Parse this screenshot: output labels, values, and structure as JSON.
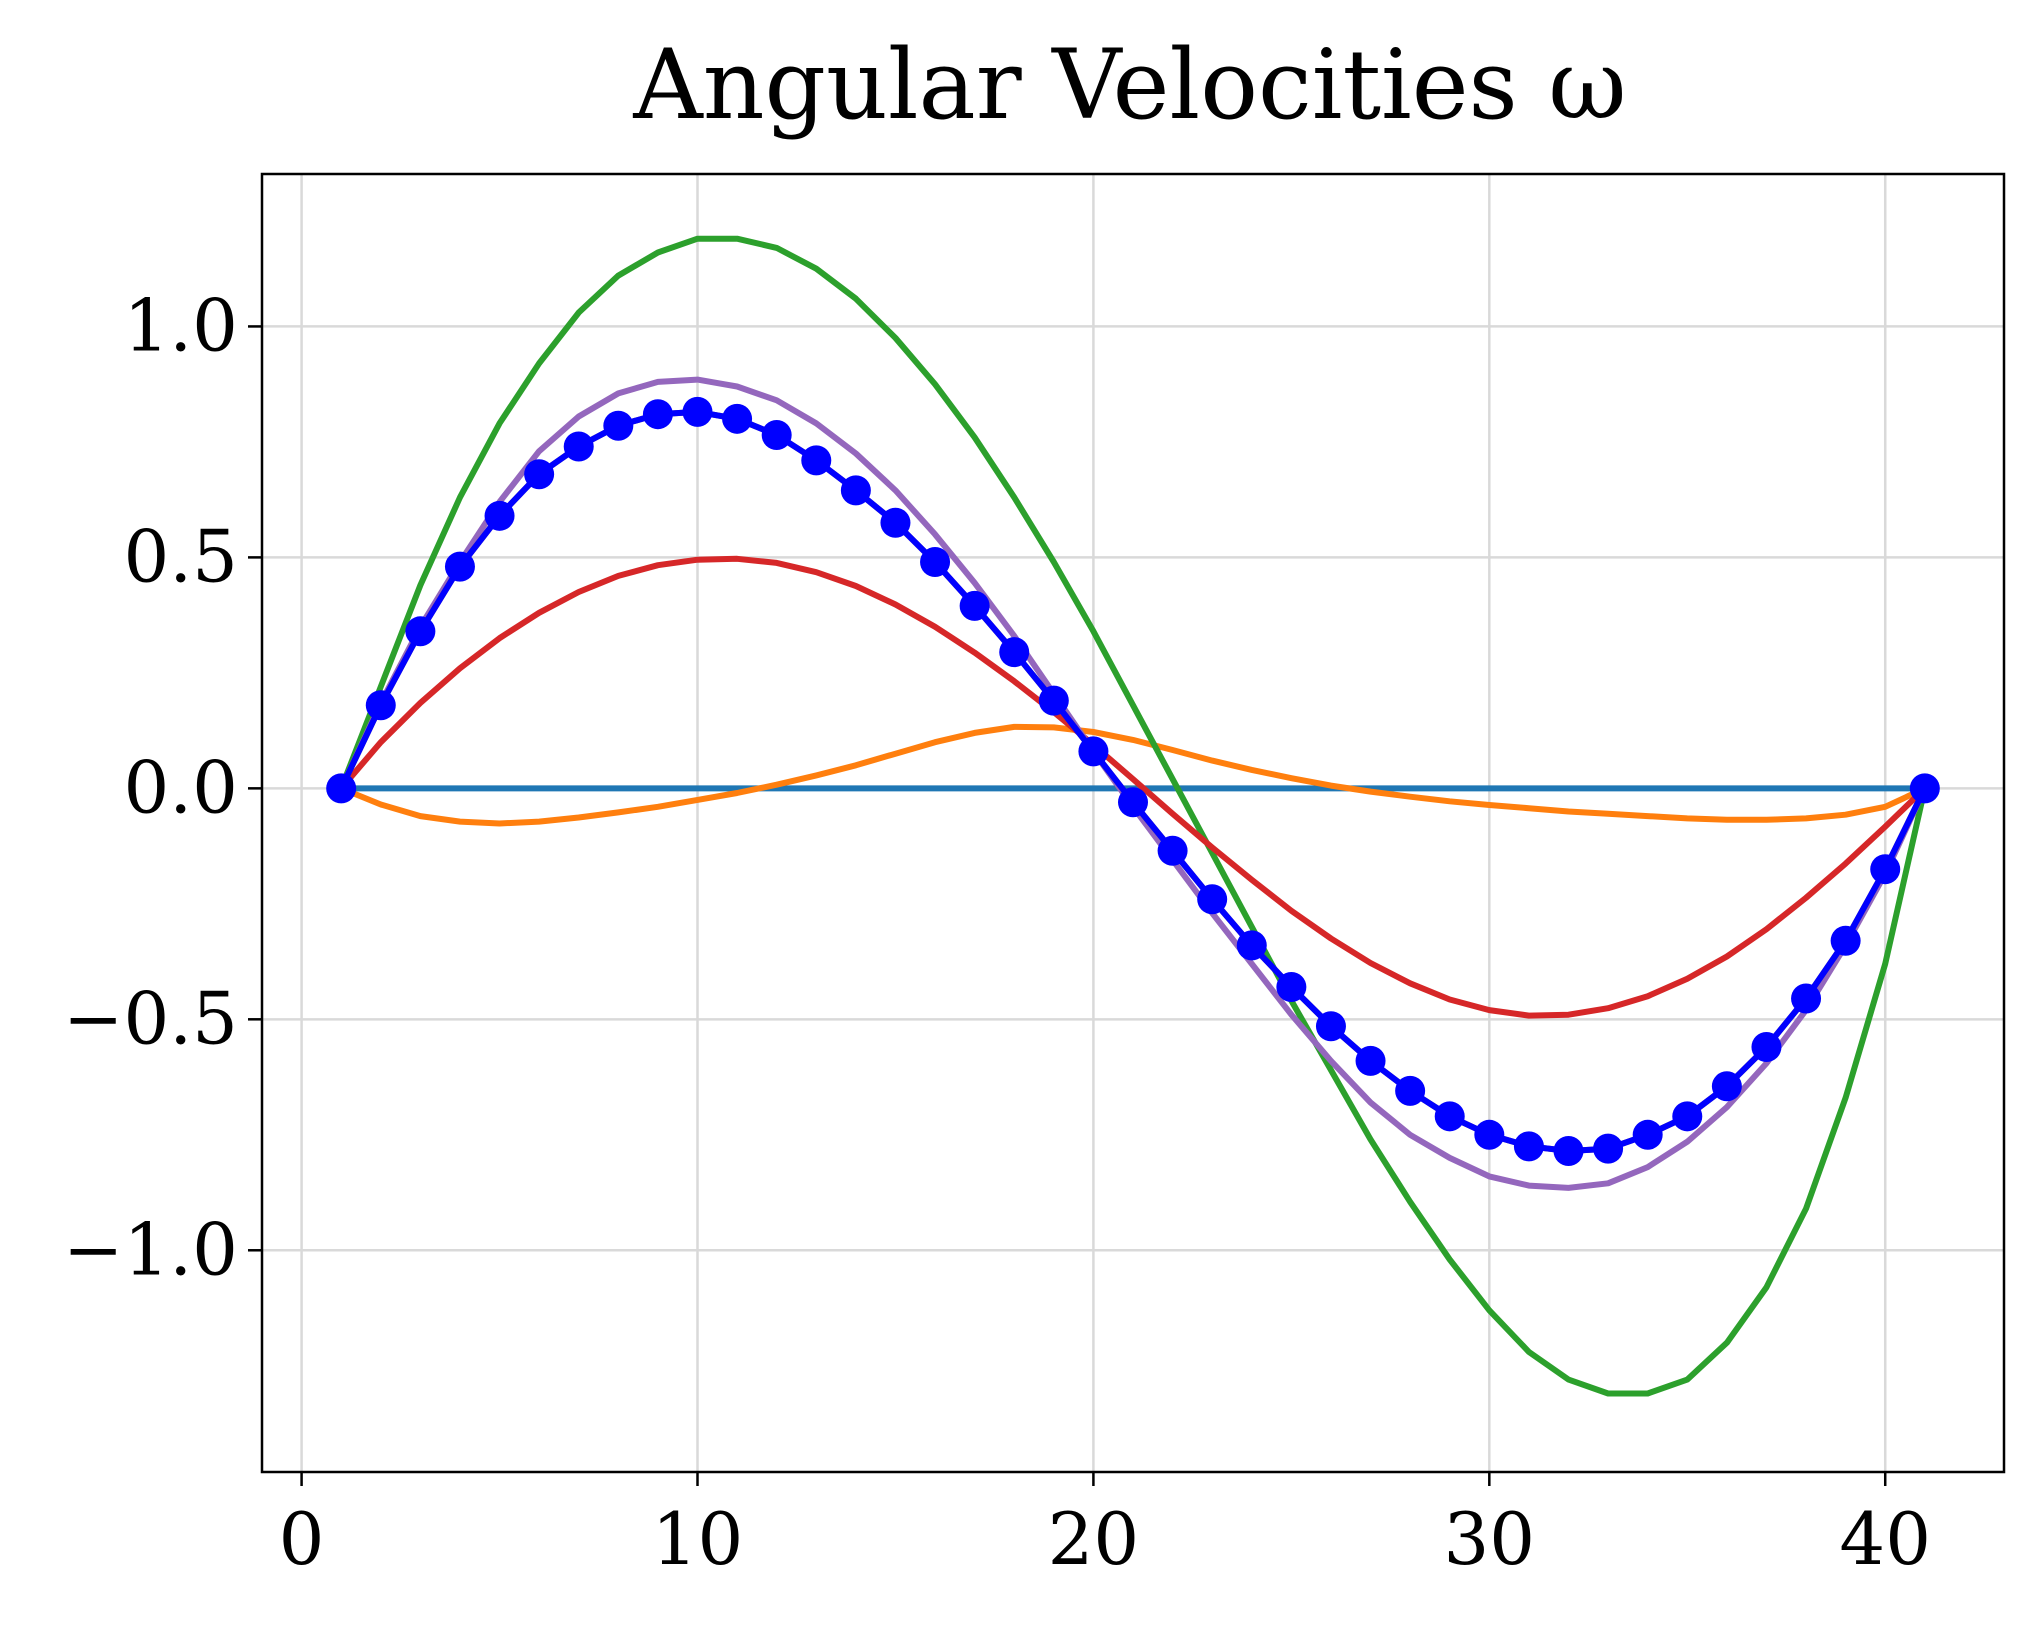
{
  "chart_data": {
    "type": "line",
    "title": "Angular Velocities ω",
    "xlabel": "",
    "ylabel": "",
    "xlim": [
      -1,
      43
    ],
    "ylim": [
      -1.48,
      1.33
    ],
    "xticks": [
      0,
      10,
      20,
      30,
      40
    ],
    "xtick_labels": [
      "0",
      "10",
      "20",
      "30",
      "40"
    ],
    "yticks": [
      -1.0,
      -0.5,
      0.0,
      0.5,
      1.0
    ],
    "ytick_labels": [
      "−1.0",
      "−0.5",
      "0.0",
      "0.5",
      "1.0"
    ],
    "grid": true,
    "legend": false,
    "x": [
      1,
      2,
      3,
      4,
      5,
      6,
      7,
      8,
      9,
      10,
      11,
      12,
      13,
      14,
      15,
      16,
      17,
      18,
      19,
      20,
      21,
      22,
      23,
      24,
      25,
      26,
      27,
      28,
      29,
      30,
      31,
      32,
      33,
      34,
      35,
      36,
      37,
      38,
      39,
      40,
      41
    ],
    "series": [
      {
        "color": "#1f77b4",
        "style": "line",
        "values": [
          0,
          0,
          0,
          0,
          0,
          0,
          0,
          0,
          0,
          0,
          0,
          0,
          0,
          0,
          0,
          0,
          0,
          0,
          0,
          0,
          0,
          0,
          0,
          0,
          0,
          0,
          0,
          0,
          0,
          0,
          0,
          0,
          0,
          0,
          0,
          0,
          0,
          0,
          0,
          0,
          0
        ]
      },
      {
        "color": "#ff7f0e",
        "style": "line",
        "values": [
          0,
          -0.035,
          -0.06,
          -0.072,
          -0.076,
          -0.072,
          -0.063,
          -0.052,
          -0.04,
          -0.025,
          -0.01,
          0.008,
          0.028,
          0.05,
          0.075,
          0.1,
          0.12,
          0.133,
          0.132,
          0.122,
          0.105,
          0.083,
          0.06,
          0.04,
          0.022,
          0.006,
          -0.007,
          -0.018,
          -0.028,
          -0.036,
          -0.043,
          -0.05,
          -0.055,
          -0.06,
          -0.065,
          -0.068,
          -0.068,
          -0.065,
          -0.057,
          -0.04,
          0
        ]
      },
      {
        "color": "#2ca02c",
        "style": "line",
        "values": [
          0,
          0.22,
          0.44,
          0.63,
          0.79,
          0.92,
          1.03,
          1.11,
          1.16,
          1.19,
          1.19,
          1.17,
          1.125,
          1.06,
          0.975,
          0.875,
          0.76,
          0.63,
          0.49,
          0.34,
          0.18,
          0.02,
          -0.14,
          -0.3,
          -0.46,
          -0.61,
          -0.76,
          -0.895,
          -1.02,
          -1.13,
          -1.22,
          -1.28,
          -1.31,
          -1.31,
          -1.28,
          -1.2,
          -1.08,
          -0.91,
          -0.67,
          -0.38,
          0
        ]
      },
      {
        "color": "#d62728",
        "style": "line",
        "values": [
          0,
          0.1,
          0.185,
          0.26,
          0.325,
          0.38,
          0.425,
          0.46,
          0.483,
          0.495,
          0.497,
          0.488,
          0.468,
          0.438,
          0.398,
          0.35,
          0.294,
          0.232,
          0.165,
          0.094,
          0.02,
          -0.055,
          -0.128,
          -0.198,
          -0.265,
          -0.325,
          -0.378,
          -0.422,
          -0.457,
          -0.48,
          -0.492,
          -0.49,
          -0.476,
          -0.45,
          -0.412,
          -0.364,
          -0.305,
          -0.237,
          -0.163,
          -0.083,
          0
        ]
      },
      {
        "color": "#9467bd",
        "style": "line",
        "values": [
          0,
          0.185,
          0.35,
          0.49,
          0.62,
          0.73,
          0.805,
          0.855,
          0.88,
          0.885,
          0.87,
          0.84,
          0.79,
          0.725,
          0.645,
          0.55,
          0.445,
          0.33,
          0.205,
          0.08,
          -0.04,
          -0.155,
          -0.27,
          -0.38,
          -0.49,
          -0.59,
          -0.68,
          -0.75,
          -0.8,
          -0.84,
          -0.86,
          -0.865,
          -0.855,
          -0.82,
          -0.765,
          -0.69,
          -0.595,
          -0.48,
          -0.34,
          -0.185,
          0
        ]
      },
      {
        "color": "#8c564b",
        "style": "line",
        "values": [
          0,
          0.18,
          0.34,
          0.48,
          0.59,
          0.68,
          0.74,
          0.785,
          0.81,
          0.815,
          0.8,
          0.765,
          0.71,
          0.645,
          0.575,
          0.49,
          0.395,
          0.295,
          0.19,
          0.08,
          -0.03,
          -0.135,
          -0.24,
          -0.34,
          -0.43,
          -0.515,
          -0.59,
          -0.655,
          -0.71,
          -0.75,
          -0.775,
          -0.785,
          -0.78,
          -0.75,
          -0.71,
          -0.645,
          -0.56,
          -0.455,
          -0.33,
          -0.175,
          0
        ]
      },
      {
        "color": "#0000ff",
        "style": "line+marker",
        "values": [
          0,
          0.18,
          0.34,
          0.48,
          0.59,
          0.68,
          0.74,
          0.785,
          0.81,
          0.815,
          0.8,
          0.765,
          0.71,
          0.645,
          0.575,
          0.49,
          0.395,
          0.295,
          0.19,
          0.08,
          -0.03,
          -0.135,
          -0.24,
          -0.34,
          -0.43,
          -0.515,
          -0.59,
          -0.655,
          -0.71,
          -0.75,
          -0.775,
          -0.785,
          -0.78,
          -0.75,
          -0.71,
          -0.645,
          -0.56,
          -0.455,
          -0.33,
          -0.175,
          0
        ]
      }
    ]
  }
}
